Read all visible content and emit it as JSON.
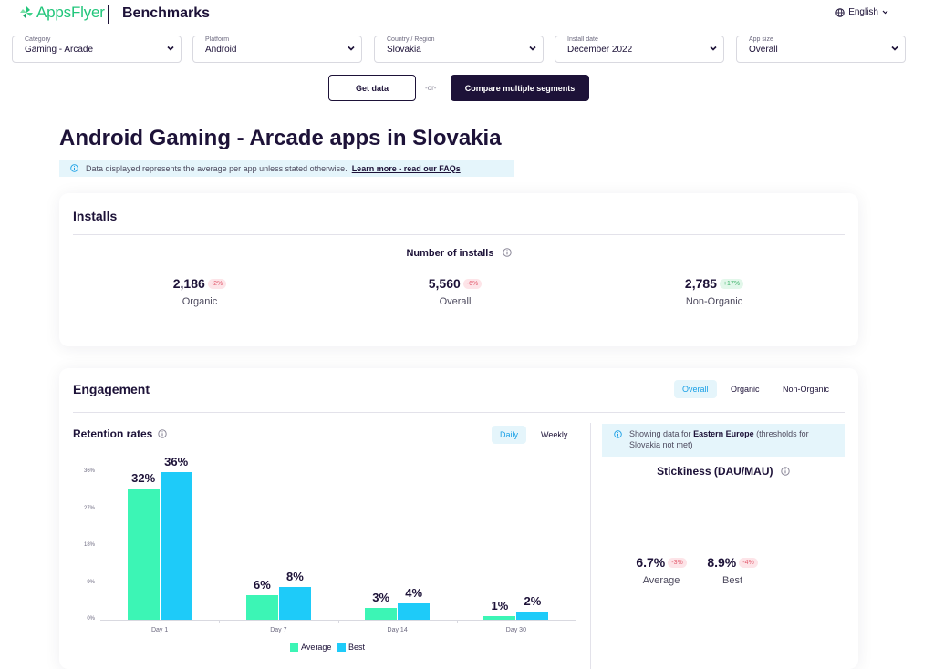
{
  "header": {
    "brand": "AppsFlyer",
    "product": "Benchmarks",
    "language": "English"
  },
  "filters": [
    {
      "label": "Category",
      "value": "Gaming - Arcade"
    },
    {
      "label": "Platform",
      "value": "Android"
    },
    {
      "label": "Country / Region",
      "value": "Slovakia"
    },
    {
      "label": "Install date",
      "value": "December 2022"
    },
    {
      "label": "App size",
      "value": "Overall"
    }
  ],
  "actions": {
    "get_data": "Get data",
    "or": "-or-",
    "compare": "Compare multiple segments"
  },
  "page": {
    "title": "Android Gaming - Arcade apps in Slovakia",
    "banner_text": "Data displayed represents the average per app unless stated otherwise.",
    "banner_link": "Learn more - read our FAQs"
  },
  "installs": {
    "title": "Installs",
    "subtitle": "Number of installs",
    "metrics": [
      {
        "value": "2,186",
        "change": "-2%",
        "label": "Organic"
      },
      {
        "value": "5,560",
        "change": "-6%",
        "label": "Overall"
      },
      {
        "value": "2,785",
        "change": "+17%",
        "label": "Non-Organic"
      }
    ]
  },
  "engagement": {
    "title": "Engagement",
    "segments": [
      "Overall",
      "Organic",
      "Non-Organic"
    ],
    "retention_title": "Retention rates",
    "periods": [
      "Daily",
      "Weekly"
    ],
    "region_note_prefix": "Showing data for",
    "region_note_region": "Eastern Europe",
    "region_note_suffix": "(thresholds for Slovakia not met)",
    "stickiness_title": "Stickiness (DAU/MAU)",
    "stickiness": [
      {
        "value": "6.7%",
        "change": "-3%",
        "label": "Average"
      },
      {
        "value": "8.9%",
        "change": "-4%",
        "label": "Best"
      }
    ]
  },
  "colors": {
    "average": "#3cf5b5",
    "best": "#1ecbf9",
    "navy": "#1d1238",
    "brand_green": "#22c67b"
  },
  "chart_data": {
    "type": "bar",
    "categories": [
      "Day 1",
      "Day 7",
      "Day 14",
      "Day 30"
    ],
    "series": [
      {
        "name": "Average",
        "values": [
          32,
          6,
          3,
          1
        ],
        "labels": [
          "32%",
          "6%",
          "3%",
          "1%"
        ]
      },
      {
        "name": "Best",
        "values": [
          36,
          8,
          4,
          2
        ],
        "labels": [
          "36%",
          "8%",
          "4%",
          "2%"
        ]
      }
    ],
    "yticks": [
      "36%",
      "27%",
      "18%",
      "9%",
      "0%"
    ],
    "ylim": [
      0,
      36
    ],
    "legend": "bottom-center"
  }
}
